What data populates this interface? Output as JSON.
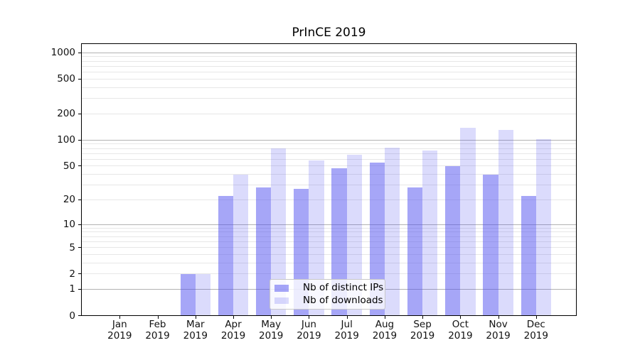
{
  "title": "PrInCE 2019",
  "chart_data": {
    "type": "bar",
    "title": "PrInCE 2019",
    "x_categories": [
      "Jan 2019",
      "Feb 2019",
      "Mar 2019",
      "Apr 2019",
      "May 2019",
      "Jun 2019",
      "Jul 2019",
      "Aug 2019",
      "Sep 2019",
      "Oct 2019",
      "Nov 2019",
      "Dec 2019"
    ],
    "series": [
      {
        "name": "Nb of distinct IPs",
        "color": "rgba(77,77,239,0.5)",
        "values": [
          0,
          0,
          2,
          22,
          28,
          27,
          47,
          55,
          28,
          50,
          40,
          22
        ]
      },
      {
        "name": "Nb of downloads",
        "color": "rgba(77,77,239,0.2)",
        "values": [
          0,
          0,
          2,
          40,
          80,
          58,
          68,
          81,
          76,
          139,
          130,
          103
        ]
      }
    ],
    "y_axis": {
      "scale": "symlog",
      "tick_values": [
        0,
        1,
        2,
        5,
        10,
        20,
        50,
        100,
        200,
        500,
        1000
      ],
      "tick_labels": [
        "0",
        "1",
        "2",
        "5",
        "10",
        "20",
        "50",
        "100",
        "200",
        "500",
        "1000"
      ],
      "ylim": [
        0,
        1280
      ],
      "grid_minor": true,
      "grid_major_at_powers_of_ten": true
    },
    "legend": {
      "position": "lower-center-inside",
      "labels": [
        "Nb of distinct IPs",
        "Nb of downloads"
      ]
    },
    "colors": {
      "bar_base": "#4d4def",
      "grid_major": "#b2b2b2",
      "grid_minor": "#e7e7e7"
    }
  }
}
